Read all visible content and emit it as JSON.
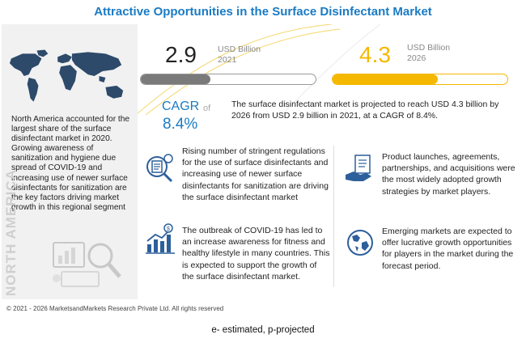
{
  "title": "Attractive Opportunities in the Surface Disinfectant Market",
  "left_panel": {
    "description": "North America accounted for the largest share of the surface disinfectant market in 2020. Growing awareness of sanitization and hygiene due spread of COVID-19 and increasing use of newer surface disinfectants for sanitization are the key factors driving market growth in this regional segment",
    "watermark": "NORTH AMERICA",
    "icons": [
      "world-map-icon",
      "analytics-illustration-icon"
    ]
  },
  "market_size": {
    "value_2021": "2.9",
    "unit_2021_line1": "USD Billion",
    "unit_2021_line2": "2021",
    "value_2026": "4.3",
    "unit_2026_line1": "USD Billion",
    "unit_2026_line2": "2026",
    "bar_2021_fill_fraction": 0.4,
    "bar_2026_fill_fraction": 0.6
  },
  "cagr": {
    "label": "CAGR",
    "of": "of",
    "value": "8.4%",
    "text": "The surface disinfectant market is projected to reach USD 4.3 billion by 2026 from USD 2.9 billion in 2021, at a CAGR of 8.4%."
  },
  "insights": [
    {
      "icon": "regulation-magnifier-icon",
      "text": "Rising number of stringent regulations for the use of surface disinfectants and increasing use of newer surface disinfectants for sanitization are driving the surface disinfectant market"
    },
    {
      "icon": "handshake-agreement-icon",
      "text": "Product launches, agreements, partnerships, and acquisitions were the most widely adopted growth strategies by market players."
    },
    {
      "icon": "growth-chart-dollar-icon",
      "text": "The outbreak of COVID-19 has led to an increase awareness for fitness and healthy lifestyle in many countries. This is expected to support the growth of the surface disinfectant market."
    },
    {
      "icon": "globe-icon",
      "text": "Emerging markets are expected to offer lucrative growth opportunities for players in the market during the forecast period."
    }
  ],
  "colors": {
    "title_blue": "#1a7bc4",
    "accent_yellow": "#f5b800",
    "bar_gray": "#7a7a7a",
    "icon_blue": "#2d5f9a"
  },
  "footer": "© 2021 - 2026 MarketsandMarkets Research Private Ltd. All rights reserved",
  "note": "e- estimated, p-projected"
}
